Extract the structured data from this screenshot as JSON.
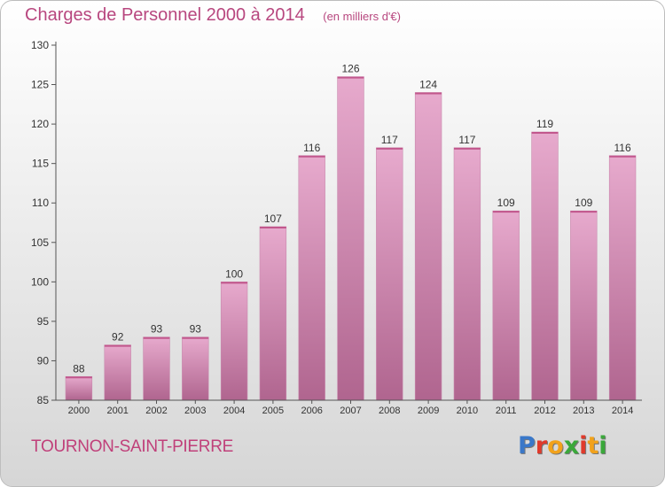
{
  "header": {
    "title": "Charges de Personnel 2000 à 2014",
    "subtitle": "(en milliers d'€)"
  },
  "footer": {
    "place": "TOURNON-SAINT-PIERRE",
    "logo_text": "Proxiti",
    "logo_colors": [
      "#3a78c9",
      "#e03a2b",
      "#f2a21b",
      "#3aa83a",
      "#e03a2b",
      "#f2a21b",
      "#3aa83a"
    ]
  },
  "colors": {
    "title": "#b8477f",
    "bar_top": "#e7aacd",
    "bar_bottom": "#b0658f",
    "axis": "#555555"
  },
  "chart_data": {
    "type": "bar",
    "title": "Charges de Personnel 2000 à 2014",
    "subtitle": "(en milliers d'€)",
    "categories": [
      "2000",
      "2001",
      "2002",
      "2003",
      "2004",
      "2005",
      "2006",
      "2007",
      "2008",
      "2009",
      "2010",
      "2011",
      "2012",
      "2013",
      "2014"
    ],
    "values": [
      88,
      92,
      93,
      93,
      100,
      107,
      116,
      126,
      117,
      124,
      117,
      109,
      119,
      109,
      116
    ],
    "ylim": [
      85,
      130
    ],
    "yticks": [
      85,
      90,
      95,
      100,
      105,
      110,
      115,
      120,
      125,
      130
    ],
    "grid": false,
    "legend": "none"
  }
}
